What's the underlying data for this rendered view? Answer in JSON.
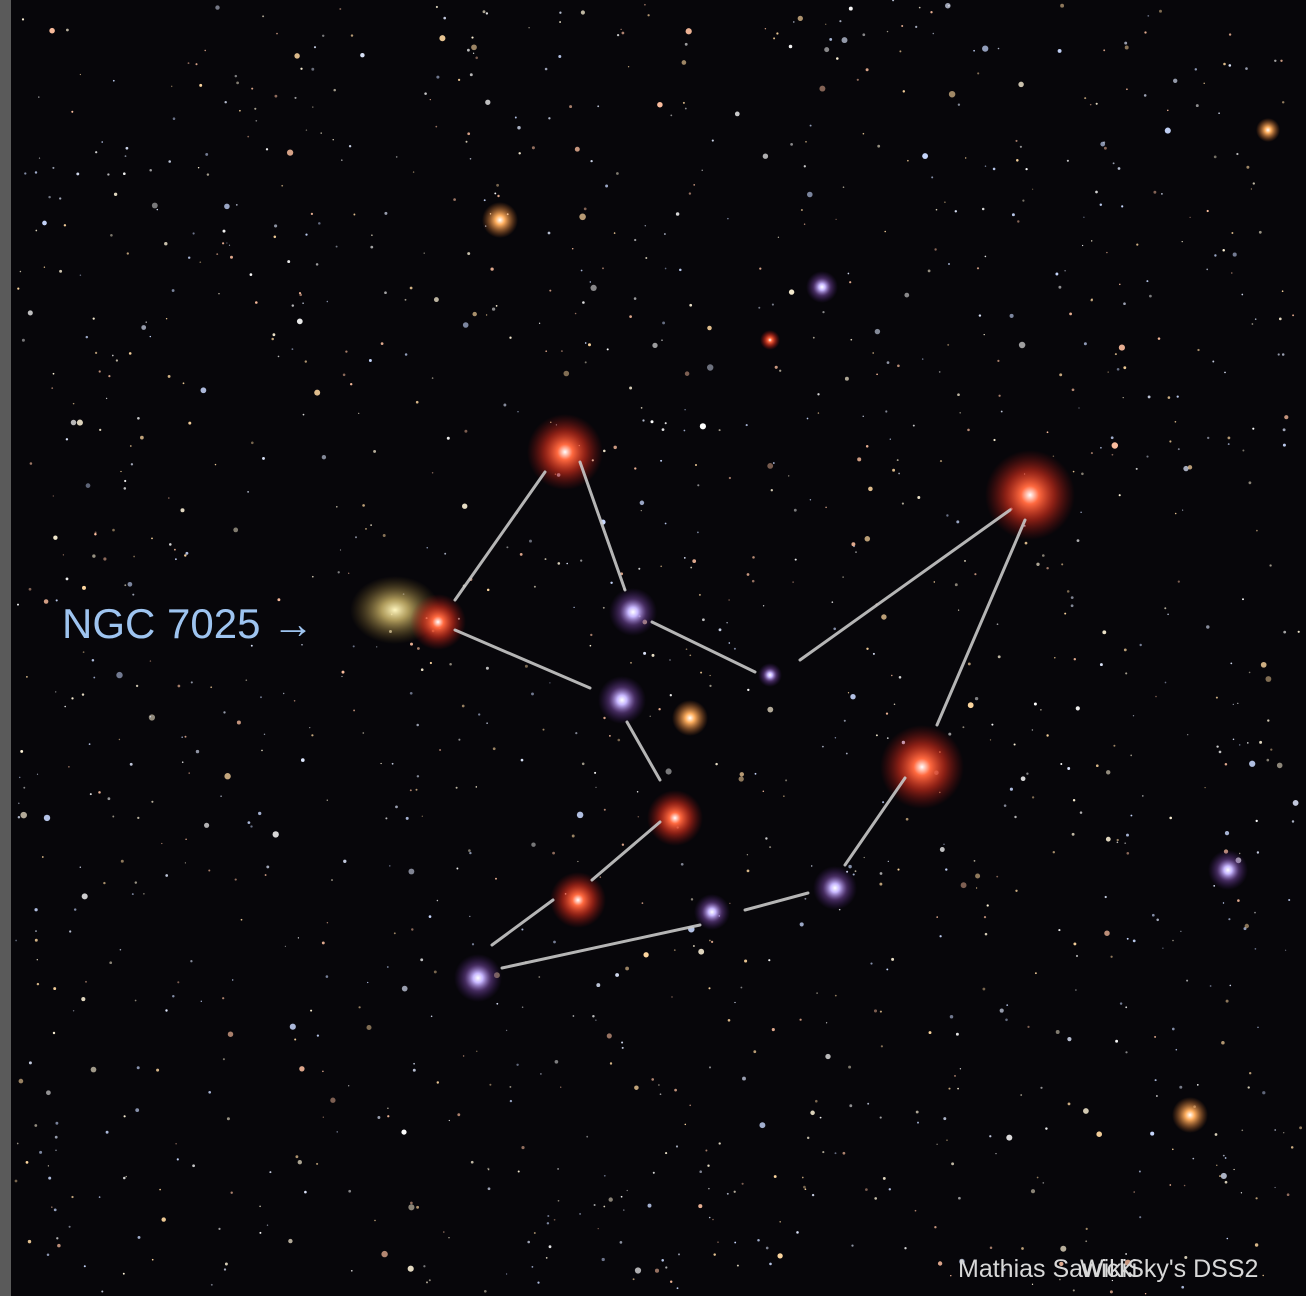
{
  "label": "NGC 7025 →",
  "credits": [
    "Mathias Sawicki",
    "WikiSky's DSS2"
  ]
}
